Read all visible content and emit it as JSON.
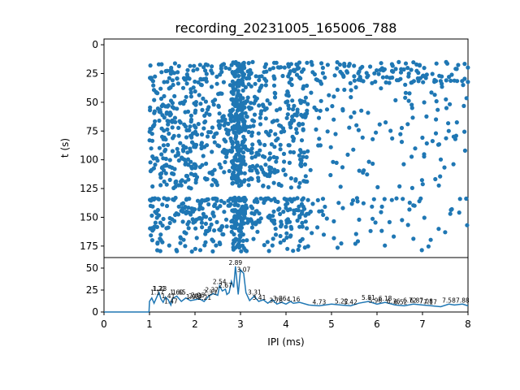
{
  "chart_data": [
    {
      "type": "scatter",
      "title": "recording_20231005_165006_788",
      "xlabel": "",
      "ylabel": "t (s)",
      "xlim": [
        0,
        8
      ],
      "ylim": [
        185,
        -5
      ],
      "y_inverted": true,
      "yticks": [
        0,
        25,
        50,
        75,
        100,
        125,
        150,
        175
      ],
      "xticks_labels_shown": false,
      "marker_color": "#1f77b4",
      "points_estimated": {
        "note_style": "dense raster of spike-interval points, x between ~1.0 and 8.0 ms, t between ~15 and ~180 s",
        "x_range": [
          1.0,
          8.0
        ],
        "t_range": [
          15,
          180
        ],
        "dense_x_band": [
          1.0,
          4.5
        ],
        "dense_t_bands": [
          [
            15,
            125
          ],
          [
            133,
            160
          ]
        ],
        "gap_t_band": [
          125,
          133
        ],
        "peak_x_band": [
          2.8,
          3.1
        ],
        "approx_point_count": 1600
      }
    },
    {
      "type": "line",
      "xlabel": "IPI (ms)",
      "ylabel": "",
      "xlim": [
        0,
        8
      ],
      "ylim": [
        0,
        62
      ],
      "xticks": [
        0,
        1,
        2,
        3,
        4,
        5,
        6,
        7,
        8
      ],
      "yticks": [
        0,
        25,
        50
      ],
      "line_color": "#1f77b4",
      "series": [
        {
          "x": [
            0,
            0.5,
            0.99,
            1.0,
            1.05,
            1.1,
            1.17,
            1.21,
            1.25,
            1.3,
            1.35,
            1.41,
            1.47,
            1.5,
            1.6,
            1.7,
            1.8,
            1.9,
            2.0,
            2.1,
            2.2,
            2.3,
            2.4,
            2.5,
            2.54,
            2.6,
            2.67,
            2.7,
            2.75,
            2.8,
            2.85,
            2.89,
            2.95,
            3.0,
            3.07,
            3.12,
            3.2,
            3.3,
            3.4,
            3.5,
            3.6,
            3.7,
            3.8,
            3.9,
            4.0,
            4.1,
            4.16,
            4.3,
            4.5,
            4.73,
            5.0,
            5.2,
            5.42,
            5.6,
            5.81,
            6.0,
            6.18,
            6.4,
            6.6,
            6.8,
            7.0,
            7.2,
            7.4,
            7.58,
            7.7,
            7.88,
            8.0
          ],
          "y": [
            0,
            0,
            0,
            12,
            16,
            10,
            18,
            22,
            15,
            11,
            17,
            14,
            8,
            15,
            18,
            12,
            16,
            13,
            14,
            15,
            12,
            18,
            21,
            19,
            30,
            24,
            26,
            20,
            22,
            35,
            28,
            52,
            20,
            48,
            44,
            22,
            13,
            18,
            12,
            14,
            10,
            14,
            9,
            11,
            9,
            12,
            10,
            11,
            8,
            7,
            9,
            8,
            7,
            10,
            12,
            9,
            11,
            8,
            7,
            9,
            8,
            7,
            6,
            9,
            8,
            9,
            7
          ]
        }
      ],
      "peak_labels": [
        "1.17",
        "1.23",
        "1.21",
        "1.41",
        "1.47",
        "1.60",
        "1.65",
        "1.95",
        "2.01",
        "2.06",
        "2.21",
        "2.33",
        "2.37",
        "2.54",
        "2.67",
        "2.89",
        "3.07",
        "3.31",
        "3.41",
        "3.78",
        "3.86",
        "4.16",
        "4.73",
        "5.22",
        "5.42",
        "5.81",
        "5.96",
        "6.18",
        "6.36",
        "6.52",
        "6.72",
        "6.87",
        "7.08",
        "7.17",
        "7.58",
        "7.88"
      ]
    }
  ]
}
